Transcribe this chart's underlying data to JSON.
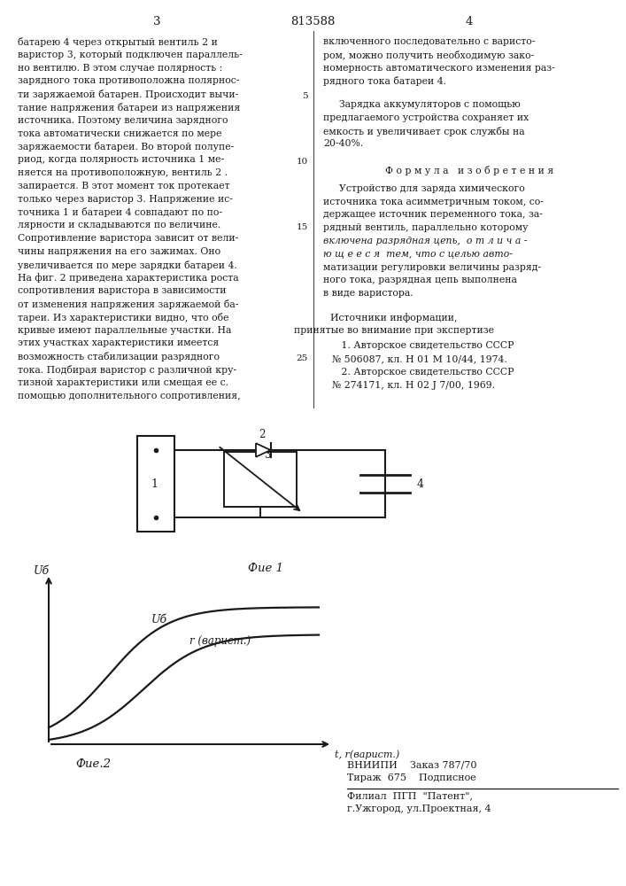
{
  "page_number_left": "3",
  "patent_number": "813588",
  "page_number_right": "4",
  "left_column_text": [
    "батарею 4 через открытый вентиль 2 и",
    "варистор 3, который подключен параллель-",
    "но вентилю. В этом случае полярность :",
    "зарядного тока противоположна полярнос-",
    "ти заряжаемой батарен. Происходит вычи-",
    "тание напряжения батареи из напряжения",
    "источника. Поэтому величина зарядного",
    "тока автоматически снижается по мере",
    "заряжаемости батареи. Во второй полупе-",
    "риод, когда полярность источника 1 ме-",
    "няется на противоположную, вентиль 2 .",
    "запирается. В этот момент ток протекает",
    "только через варистор 3. Напряжение ис-",
    "точника 1 и батареи 4 совпадают по по-",
    "лярности и складываются по величине.",
    "Сопротивление варистора зависит от вели-",
    "чины напряжения на его зажимах. Оно",
    "увеличивается по мере зарядки батареи 4.",
    "На фиг. 2 приведена характеристика роста",
    "сопротивления варистора в зависимости",
    "от изменения напряжения заряжаемой ба-",
    "тареи. Из характеристики видно, что обе",
    "кривые имеют параллельные участки. На",
    "этих участках характеристики имеется",
    "возможность стабилизации разрядного",
    "тока. Подбирая варистор с различной кру-",
    "тизной характеристики или смещая ее с.",
    "помощью дополнительного сопротивления,"
  ],
  "right_column_text_top": [
    "включенного последовательно с варисто-",
    "ром, можно получить необходимую зако-",
    "номерность автоматического изменения раз-",
    "рядного тока батареи 4."
  ],
  "right_col_para2": [
    "Зарядка аккумуляторов с помощью",
    "предлагаемого устройства сохраняет их",
    "емкость и увеличивает срок службы на",
    "20-40%."
  ],
  "formula_header": "Ф о р м у л а   и з о б р е т е н и я",
  "right_col_formula": [
    "Устройство для заряда химического",
    "источника тока асимметричным током, со-",
    "держащее источник переменного тока, за-",
    "рядный вентиль, параллельно которому",
    "включена разрядная цепь,  о т л и ч а -",
    "ю щ е е с я  тем, что с целью авто-",
    "матизации регулировки величины разряд-",
    "ного тока, разрядная цепь выполнена",
    "в виде варистора."
  ],
  "sources_header1": "Источники информации,",
  "sources_header2": "принятые во внимание при экспертизе",
  "sources": [
    "   1. Авторское свидетельство СССР",
    "№ 506087, кл. Н 01 М 10/44, 1974.",
    "   2. Авторское свидетельство СССР",
    "№ 274171, кл. Н 02 J 7/00, 1969."
  ],
  "fig1_label": "Фие 1",
  "fig2_label": "Фие.2",
  "ub_axis_label": "Uб",
  "ub_curve_label": "Uб",
  "r_curve_label": "r (варист.)",
  "t_axis_label": "t, r(варист.)",
  "vnipi_line1": "ВНИИПИ    Заказ 787/70",
  "vnipi_line2": "Тираж  675    Подписное",
  "vnipi_line3": "Филиал  ПГП  \"Патент\",",
  "vnipi_line4": "г.Ужгород, ул.Проектная, 4",
  "bg_color": "#ffffff",
  "text_color": "#1a1a1a",
  "line_color": "#1a1a1a",
  "line_numbers": [
    "5",
    "10",
    "15",
    "25"
  ]
}
